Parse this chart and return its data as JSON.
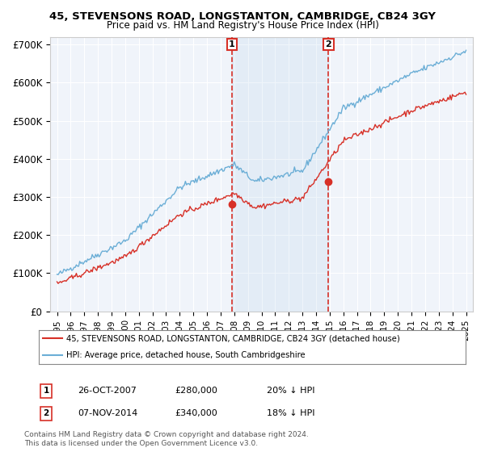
{
  "title": "45, STEVENSONS ROAD, LONGSTANTON, CAMBRIDGE, CB24 3GY",
  "subtitle": "Price paid vs. HM Land Registry's House Price Index (HPI)",
  "ylabel_ticks": [
    "£0",
    "£100K",
    "£200K",
    "£300K",
    "£400K",
    "£500K",
    "£600K",
    "£700K"
  ],
  "ytick_values": [
    0,
    100000,
    200000,
    300000,
    400000,
    500000,
    600000,
    700000
  ],
  "ylim": [
    0,
    720000
  ],
  "hpi_color": "#6baed6",
  "price_color": "#d73027",
  "marker1_date_idx": 152,
  "marker1_label": "1",
  "marker1_date_str": "26-OCT-2007",
  "marker1_price": 280000,
  "marker1_pct": "20% ↓ HPI",
  "marker2_date_idx": 238,
  "marker2_label": "2",
  "marker2_date_str": "07-NOV-2014",
  "marker2_price": 340000,
  "marker2_pct": "18% ↓ HPI",
  "legend_line1": "45, STEVENSONS ROAD, LONGSTANTON, CAMBRIDGE, CB24 3GY (detached house)",
  "legend_line2": "HPI: Average price, detached house, South Cambridgeshire",
  "footer1": "Contains HM Land Registry data © Crown copyright and database right 2024.",
  "footer2": "This data is licensed under the Open Government Licence v3.0.",
  "background_color": "#ffffff",
  "plot_bg_color": "#f0f4fa",
  "grid_color": "#ffffff"
}
